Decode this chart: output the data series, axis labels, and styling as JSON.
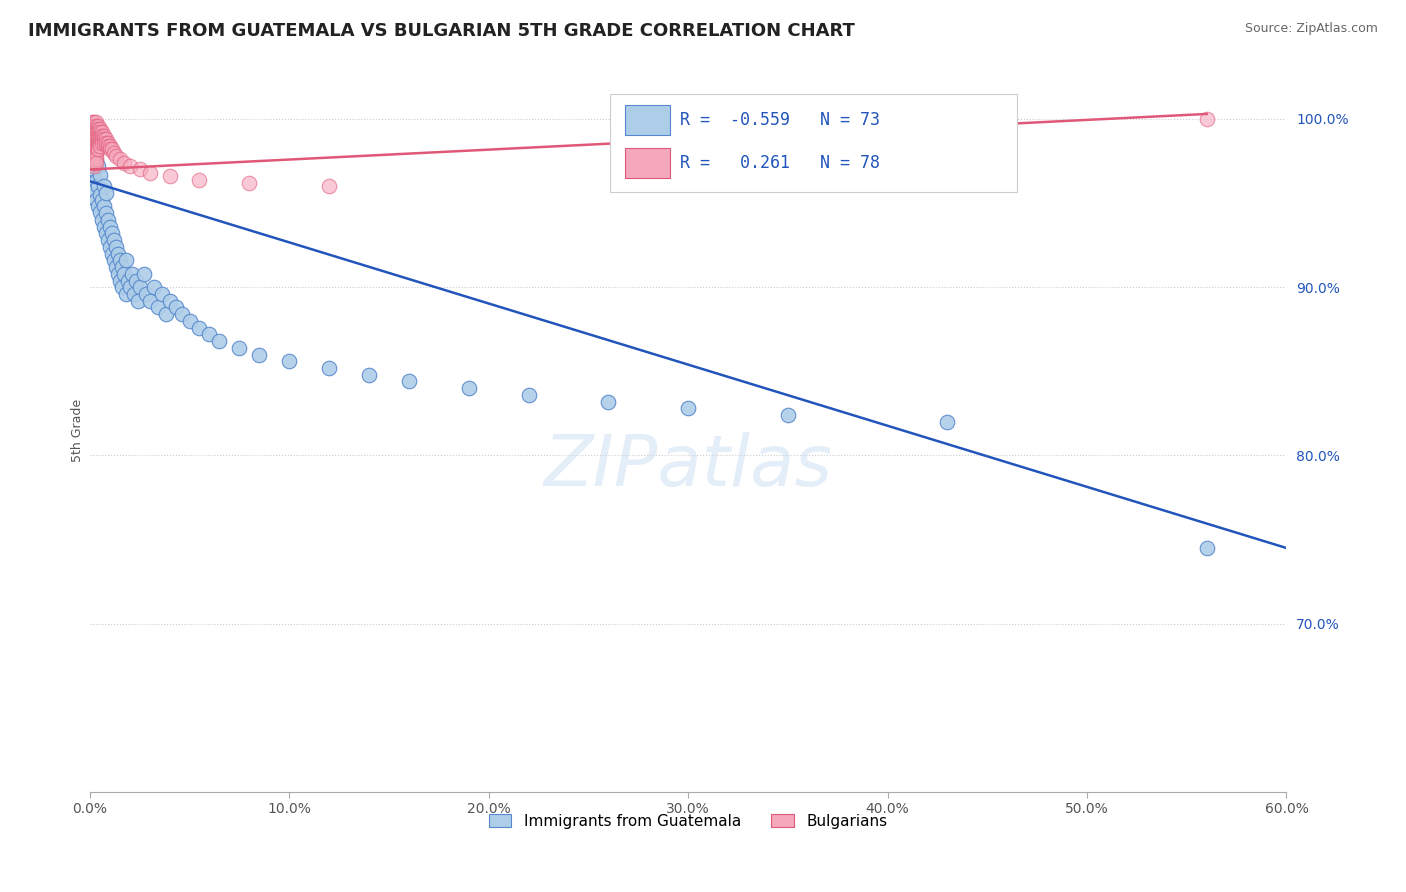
{
  "title": "IMMIGRANTS FROM GUATEMALA VS BULGARIAN 5TH GRADE CORRELATION CHART",
  "source": "Source: ZipAtlas.com",
  "ylabel": "5th Grade",
  "xlim": [
    0.0,
    0.6
  ],
  "ylim": [
    0.6,
    1.03
  ],
  "xticks": [
    0.0,
    0.1,
    0.2,
    0.3,
    0.4,
    0.5,
    0.6
  ],
  "xtick_labels": [
    "0.0%",
    "10.0%",
    "20.0%",
    "30.0%",
    "40.0%",
    "50.0%",
    "60.0%"
  ],
  "yticks": [
    0.7,
    0.8,
    0.9,
    1.0
  ],
  "ytick_labels": [
    "70.0%",
    "80.0%",
    "90.0%",
    "100.0%"
  ],
  "blue_R": -0.559,
  "blue_N": 73,
  "pink_R": 0.261,
  "pink_N": 78,
  "blue_color": "#aecde8",
  "blue_edge_color": "#5588cc",
  "pink_color": "#f5a8bc",
  "pink_edge_color": "#e05878",
  "blue_line_color": "#2255bb",
  "pink_line_color": "#e05878",
  "legend_blue_label": "Immigrants from Guatemala",
  "legend_pink_label": "Bulgarians",
  "blue_line_x0": 0.0,
  "blue_line_y0": 0.963,
  "blue_line_x1": 0.6,
  "blue_line_y1": 0.745,
  "pink_line_x0": 0.0,
  "pink_line_y0": 0.97,
  "pink_line_x1": 0.56,
  "pink_line_y1": 1.003,
  "blue_x": [
    0.001,
    0.002,
    0.002,
    0.003,
    0.003,
    0.003,
    0.004,
    0.004,
    0.004,
    0.005,
    0.005,
    0.005,
    0.006,
    0.006,
    0.007,
    0.007,
    0.007,
    0.008,
    0.008,
    0.008,
    0.009,
    0.009,
    0.01,
    0.01,
    0.011,
    0.011,
    0.012,
    0.012,
    0.013,
    0.013,
    0.014,
    0.014,
    0.015,
    0.015,
    0.016,
    0.016,
    0.017,
    0.018,
    0.018,
    0.019,
    0.02,
    0.021,
    0.022,
    0.023,
    0.024,
    0.025,
    0.027,
    0.028,
    0.03,
    0.032,
    0.034,
    0.036,
    0.038,
    0.04,
    0.043,
    0.046,
    0.05,
    0.055,
    0.06,
    0.065,
    0.075,
    0.085,
    0.1,
    0.12,
    0.14,
    0.16,
    0.19,
    0.22,
    0.26,
    0.3,
    0.35,
    0.43,
    0.56
  ],
  "blue_y": [
    0.962,
    0.958,
    0.97,
    0.952,
    0.963,
    0.975,
    0.948,
    0.96,
    0.972,
    0.945,
    0.955,
    0.967,
    0.94,
    0.952,
    0.936,
    0.948,
    0.96,
    0.932,
    0.944,
    0.956,
    0.928,
    0.94,
    0.924,
    0.936,
    0.92,
    0.932,
    0.916,
    0.928,
    0.912,
    0.924,
    0.92,
    0.908,
    0.916,
    0.904,
    0.912,
    0.9,
    0.908,
    0.916,
    0.896,
    0.904,
    0.9,
    0.908,
    0.896,
    0.904,
    0.892,
    0.9,
    0.908,
    0.896,
    0.892,
    0.9,
    0.888,
    0.896,
    0.884,
    0.892,
    0.888,
    0.884,
    0.88,
    0.876,
    0.872,
    0.868,
    0.864,
    0.86,
    0.856,
    0.852,
    0.848,
    0.844,
    0.84,
    0.836,
    0.832,
    0.828,
    0.824,
    0.82,
    0.745
  ],
  "pink_x": [
    0.001,
    0.001,
    0.001,
    0.001,
    0.001,
    0.001,
    0.001,
    0.001,
    0.001,
    0.001,
    0.001,
    0.002,
    0.002,
    0.002,
    0.002,
    0.002,
    0.002,
    0.002,
    0.002,
    0.002,
    0.002,
    0.002,
    0.002,
    0.002,
    0.002,
    0.003,
    0.003,
    0.003,
    0.003,
    0.003,
    0.003,
    0.003,
    0.003,
    0.003,
    0.003,
    0.003,
    0.003,
    0.003,
    0.004,
    0.004,
    0.004,
    0.004,
    0.004,
    0.004,
    0.004,
    0.004,
    0.005,
    0.005,
    0.005,
    0.005,
    0.005,
    0.005,
    0.006,
    0.006,
    0.006,
    0.006,
    0.007,
    0.007,
    0.007,
    0.008,
    0.008,
    0.009,
    0.009,
    0.01,
    0.01,
    0.011,
    0.012,
    0.013,
    0.015,
    0.017,
    0.02,
    0.025,
    0.03,
    0.04,
    0.055,
    0.08,
    0.12,
    0.56
  ],
  "pink_y": [
    0.998,
    0.996,
    0.994,
    0.992,
    0.99,
    0.988,
    0.986,
    0.984,
    0.982,
    0.98,
    0.978,
    0.998,
    0.996,
    0.994,
    0.992,
    0.99,
    0.988,
    0.986,
    0.984,
    0.982,
    0.98,
    0.978,
    0.976,
    0.974,
    0.972,
    0.998,
    0.996,
    0.994,
    0.992,
    0.99,
    0.988,
    0.986,
    0.984,
    0.982,
    0.98,
    0.978,
    0.976,
    0.974,
    0.996,
    0.994,
    0.992,
    0.99,
    0.988,
    0.986,
    0.984,
    0.982,
    0.994,
    0.992,
    0.99,
    0.988,
    0.986,
    0.984,
    0.992,
    0.99,
    0.988,
    0.986,
    0.99,
    0.988,
    0.986,
    0.988,
    0.986,
    0.986,
    0.984,
    0.984,
    0.982,
    0.982,
    0.98,
    0.978,
    0.976,
    0.974,
    0.972,
    0.97,
    0.968,
    0.966,
    0.964,
    0.962,
    0.96,
    1.0
  ]
}
